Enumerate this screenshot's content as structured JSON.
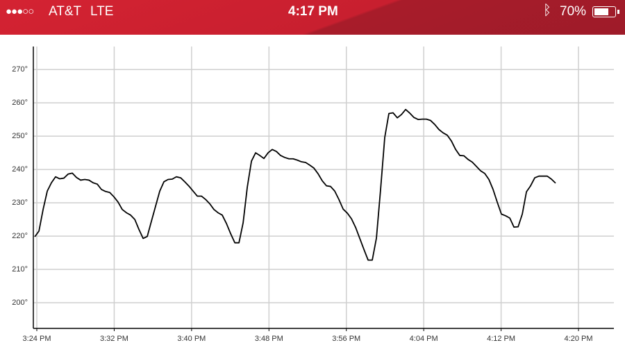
{
  "status_bar": {
    "signal": "●●●○○",
    "carrier": "AT&T",
    "network": "LTE",
    "time": "4:17 PM",
    "battery": "70%"
  },
  "chart_data": {
    "type": "line",
    "x": [
      923.79,
      924.22,
      924.65,
      925.08,
      925.51,
      925.94,
      926.37,
      926.8,
      927.23,
      927.67,
      928.1,
      928.53,
      928.96,
      929.39,
      929.82,
      930.25,
      930.68,
      931.11,
      931.54,
      931.97,
      932.4,
      932.83,
      933.27,
      933.7,
      934.13,
      934.56,
      934.99,
      935.42,
      935.85,
      936.28,
      936.71,
      937.14,
      937.57,
      938.0,
      938.43,
      938.87,
      939.3,
      939.73,
      940.16,
      940.59,
      941.02,
      941.45,
      941.88,
      942.31,
      942.74,
      943.17,
      943.6,
      944.03,
      944.47,
      944.9,
      945.33,
      945.76,
      946.19,
      946.62,
      947.05,
      947.48,
      947.91,
      948.34,
      948.77,
      949.2,
      949.63,
      950.07,
      950.5,
      950.93,
      951.36,
      951.79,
      952.22,
      952.65,
      953.08,
      953.51,
      953.94,
      954.37,
      954.8,
      955.23,
      955.67,
      956.1,
      956.53,
      956.96,
      957.39,
      957.82,
      958.25,
      958.68,
      959.11,
      959.54,
      959.97,
      960.4,
      960.83,
      961.27,
      961.7,
      962.13,
      962.56,
      962.99,
      963.42,
      963.85,
      964.28,
      964.71,
      965.14,
      965.57,
      966.0,
      966.43,
      966.87,
      967.3,
      967.73,
      968.16,
      968.59,
      969.02,
      969.45,
      969.88,
      970.31,
      970.74,
      971.17,
      971.6,
      972.03,
      972.47,
      972.9,
      973.33,
      973.76,
      974.19,
      974.62,
      975.05,
      975.48,
      975.91,
      976.34,
      976.77,
      977.2,
      977.63
    ],
    "series": [
      {
        "color": "#000000",
        "values": [
          219.8,
          221.5,
          228,
          233.5,
          236,
          237.8,
          237.2,
          237.4,
          238.6,
          238.9,
          237.6,
          236.8,
          237,
          236.8,
          236,
          235.6,
          234,
          233.4,
          233.1,
          231.8,
          230.2,
          228,
          227,
          226.3,
          225,
          222,
          219.3,
          219.9,
          224.5,
          229,
          233.5,
          236.3,
          237,
          237.1,
          237.8,
          237.5,
          236.3,
          235,
          233.5,
          232,
          232,
          231,
          229.7,
          228,
          227,
          226.3,
          223.8,
          220.8,
          218,
          218,
          224,
          234.7,
          242.5,
          245,
          244.2,
          243.3,
          245,
          246,
          245.4,
          244.2,
          243.6,
          243.2,
          243.2,
          242.8,
          242.3,
          242.1,
          241.3,
          240.4,
          238.7,
          236.6,
          235.1,
          234.9,
          233.5,
          231,
          228.1,
          226.9,
          225.2,
          222.6,
          219.3,
          216,
          212.8,
          212.8,
          219.4,
          234,
          249.6,
          256.8,
          257,
          255.5,
          256.5,
          258,
          256.9,
          255.6,
          255,
          255.1,
          255.1,
          254.7,
          253.5,
          252,
          251,
          250.3,
          248.5,
          246,
          244.2,
          244.1,
          243,
          242.2,
          240.9,
          239.6,
          238.8,
          237,
          234,
          230.2,
          226.6,
          226.1,
          225.4,
          222.7,
          222.8,
          226.6,
          233.3,
          235.1,
          237.5,
          238,
          238,
          238,
          237.1,
          235.9
        ]
      }
    ],
    "xlim": [
      923.64,
      983.66
    ],
    "xticks": [
      {
        "value": 924,
        "label": "3:24 PM"
      },
      {
        "value": 932,
        "label": "3:32 PM"
      },
      {
        "value": 940,
        "label": "3:40 PM"
      },
      {
        "value": 948,
        "label": "3:48 PM"
      },
      {
        "value": 956,
        "label": "3:56 PM"
      },
      {
        "value": 964,
        "label": "4:04 PM"
      },
      {
        "value": 972,
        "label": "4:12 PM"
      },
      {
        "value": 980,
        "label": "4:20 PM"
      }
    ],
    "ylim": [
      192.3,
      276.9
    ],
    "yticks": [
      {
        "value": 200,
        "label": "200°"
      },
      {
        "value": 210,
        "label": "210°"
      },
      {
        "value": 220,
        "label": "220°"
      },
      {
        "value": 230,
        "label": "230°"
      },
      {
        "value": 240,
        "label": "240°"
      },
      {
        "value": 250,
        "label": "250°"
      },
      {
        "value": 260,
        "label": "260°"
      },
      {
        "value": 270,
        "label": "270°"
      }
    ],
    "grid": true
  }
}
